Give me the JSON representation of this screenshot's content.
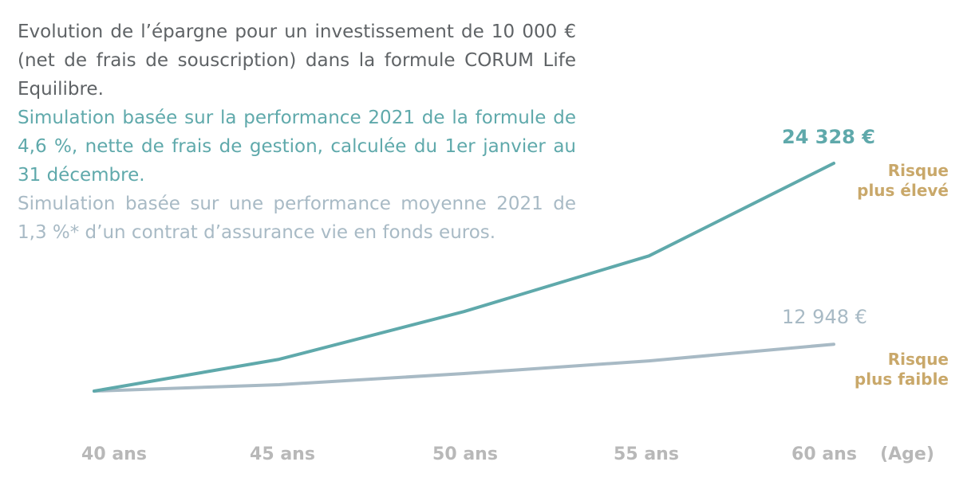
{
  "description": {
    "line1": "Evolution de l’épargne pour un investissement de 10 000 € (net de frais de souscription) dans la formule CORUM Life Equilibre.",
    "line2": "Simulation basée sur la performance 2021 de la formule de 4,6 %, nette de frais de gestion, calculée du 1er janvier au 31 décembre.",
    "line3": "Simulation basée sur une performance moyenne 2021 de 1,3 %* d’un contrat d’assurance vie en fonds euros."
  },
  "chart_data": {
    "type": "line",
    "x": [
      40,
      45,
      50,
      55,
      60
    ],
    "x_tick_labels": [
      "40 ans",
      "45 ans",
      "50 ans",
      "55 ans",
      "60 ans"
    ],
    "xlabel": "(Age)",
    "ylabel": "",
    "title": "",
    "grid": false,
    "series": [
      {
        "key": "corum",
        "values": [
          10000,
          12000,
          15000,
          18500,
          24328
        ],
        "end_label": "24 328 €",
        "risk_label": "Risque plus élevé",
        "color": "#5fa9ab"
      },
      {
        "key": "fonds_euros",
        "values": [
          10000,
          10400,
          11100,
          11900,
          12948
        ],
        "end_label": "12 948 €",
        "risk_label": "Risque plus faible",
        "color": "#a8bac5"
      }
    ],
    "risk_label_color": "#c9a86a",
    "axis_label_color": "#b8b8b8"
  }
}
